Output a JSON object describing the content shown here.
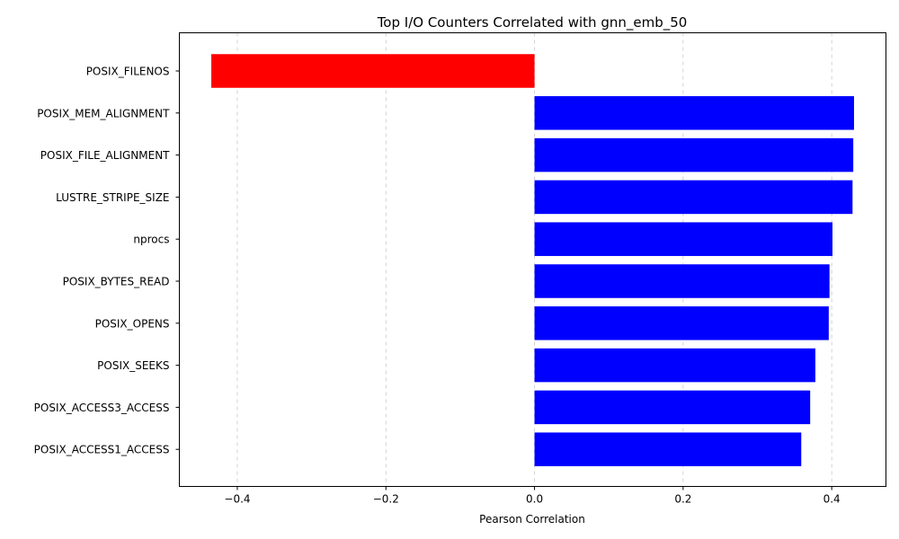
{
  "chart_data": {
    "type": "bar",
    "orientation": "horizontal",
    "title": "Top I/O Counters Correlated with gnn_emb_50",
    "xlabel": "Pearson Correlation",
    "ylabel": "",
    "xlim": [
      -0.478,
      0.473
    ],
    "xticks": [
      -0.4,
      -0.2,
      0.0,
      0.2,
      0.4
    ],
    "xtick_labels": [
      "−0.4",
      "−0.2",
      "0.0",
      "0.2",
      "0.4"
    ],
    "grid": {
      "x": true,
      "style": "dashed"
    },
    "categories": [
      "POSIX_FILENOS",
      "POSIX_MEM_ALIGNMENT",
      "POSIX_FILE_ALIGNMENT",
      "LUSTRE_STRIPE_SIZE",
      "nprocs",
      "POSIX_BYTES_READ",
      "POSIX_OPENS",
      "POSIX_SEEKS",
      "POSIX_ACCESS3_ACCESS",
      "POSIX_ACCESS1_ACCESS"
    ],
    "values": [
      -0.435,
      0.43,
      0.429,
      0.428,
      0.401,
      0.397,
      0.396,
      0.378,
      0.371,
      0.359
    ],
    "colors": {
      "positive": "#0000ff",
      "negative": "#ff0000"
    }
  }
}
